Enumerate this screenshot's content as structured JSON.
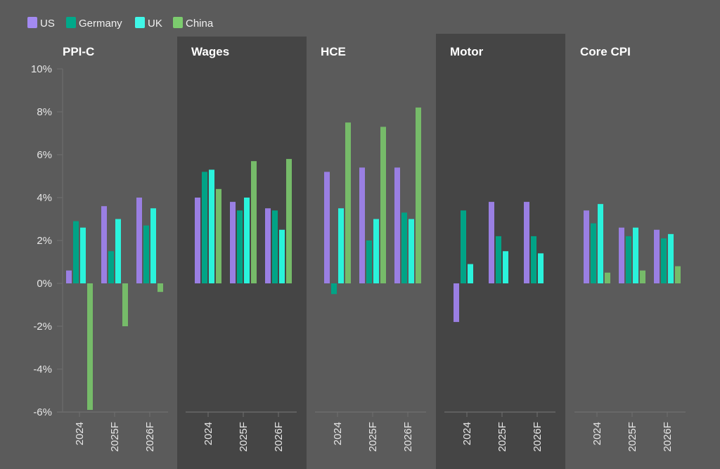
{
  "chart_data": {
    "type": "bar",
    "legend_position": "top-left",
    "grid": false,
    "ylim": [
      -6,
      10
    ],
    "y_ticks": [
      "10%",
      "8%",
      "6%",
      "4%",
      "2%",
      "0%",
      "-2%",
      "-4%",
      "-6%"
    ],
    "categories": [
      "2024",
      "2025F",
      "2026F"
    ],
    "series_names": [
      "US",
      "Germany",
      "UK",
      "China"
    ],
    "colors": {
      "US": "#9a7fe3",
      "Germany": "#00a386",
      "UK": "#2af3dc",
      "China": "#76bb69"
    },
    "legend_colors": {
      "US": "#a38af2",
      "Germany": "#00a98a",
      "UK": "#40f7e8",
      "China": "#7ccc6e"
    },
    "panels": [
      {
        "title": "PPI-C",
        "shaded": false,
        "values": {
          "US": [
            0.6,
            3.6,
            4.0
          ],
          "Germany": [
            2.9,
            1.5,
            2.7
          ],
          "UK": [
            2.6,
            3.0,
            3.5
          ],
          "China": [
            -5.9,
            -2.0,
            -0.4
          ]
        }
      },
      {
        "title": "Wages",
        "shaded": true,
        "values": {
          "US": [
            4.0,
            3.8,
            3.5
          ],
          "Germany": [
            5.2,
            3.4,
            3.4
          ],
          "UK": [
            5.3,
            4.0,
            2.5
          ],
          "China": [
            4.4,
            5.7,
            5.8
          ]
        }
      },
      {
        "title": "HCE",
        "shaded": false,
        "values": {
          "US": [
            5.2,
            5.4,
            5.4
          ],
          "Germany": [
            -0.5,
            2.0,
            3.3
          ],
          "UK": [
            3.5,
            3.0,
            3.0
          ],
          "China": [
            7.5,
            7.3,
            8.2
          ]
        }
      },
      {
        "title": "Motor",
        "shaded": true,
        "values": {
          "US": [
            -1.8,
            3.8,
            3.8
          ],
          "Germany": [
            3.4,
            2.2,
            2.2
          ],
          "UK": [
            0.9,
            1.5,
            1.4
          ],
          "China": [
            null,
            null,
            null
          ]
        }
      },
      {
        "title": "Core CPI",
        "shaded": false,
        "values": {
          "US": [
            3.4,
            2.6,
            2.5
          ],
          "Germany": [
            2.8,
            2.2,
            2.1
          ],
          "UK": [
            3.7,
            2.6,
            2.3
          ],
          "China": [
            0.5,
            0.6,
            0.8
          ]
        }
      }
    ]
  }
}
